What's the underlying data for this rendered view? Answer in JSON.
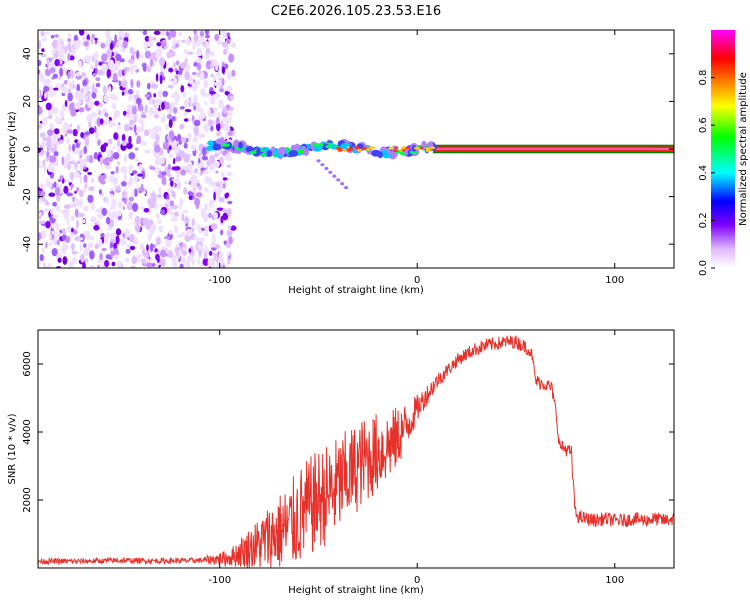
{
  "title": "C2E6.2026.105.23.53.E16",
  "chart_data": [
    {
      "type": "heatmap",
      "title": "C2E6.2026.105.23.53.E16",
      "xlabel": "Height of straight line (km)",
      "ylabel": "Frequency (Hz)",
      "xlim": [
        -192,
        130
      ],
      "ylim": [
        -50,
        50
      ],
      "x_ticks": [
        -100,
        0,
        100
      ],
      "x_tick_labels": [
        "-100",
        "0",
        "100"
      ],
      "y_ticks": [
        -40,
        -20,
        0,
        20,
        40
      ],
      "y_tick_labels": [
        "-40",
        "-20",
        "0",
        "20",
        "40"
      ],
      "noise_region_x": [
        -192,
        -93
      ],
      "signal_band": {
        "x_start": -105,
        "x_end": 8,
        "center_hz": 0
      },
      "carrier_line": {
        "x_start": 8,
        "x_end": 130,
        "freq_hz": 0,
        "halfwidth_hz": 1.8
      },
      "colorbar": {
        "label": "Normalized spectral amplitude",
        "range": [
          0,
          1
        ],
        "ticks": [
          0,
          0.2,
          0.4,
          0.6,
          0.8
        ],
        "tick_labels": [
          "0.0",
          "0.2",
          "0.4",
          "0.6",
          "0.8"
        ],
        "colormap": [
          "#ffffff",
          "#e0b8ff",
          "#8000ff",
          "#0000ff",
          "#00ffff",
          "#00ff00",
          "#ffff00",
          "#ff8000",
          "#ff0000",
          "#ff00ff"
        ]
      }
    },
    {
      "type": "line",
      "xlabel": "Height of straight line (km)",
      "ylabel": "SNR (10 * v/v)",
      "xlim": [
        -192,
        130
      ],
      "ylim": [
        0,
        7000
      ],
      "x_ticks": [
        -100,
        0,
        100
      ],
      "x_tick_labels": [
        "-100",
        "0",
        "100"
      ],
      "y_ticks": [
        2000,
        4000,
        6000
      ],
      "y_tick_labels": [
        "2000",
        "4000",
        "6000"
      ],
      "series": [
        {
          "name": "SNR",
          "color": "#e8302a",
          "x": [
            -192,
            -170,
            -150,
            -130,
            -110,
            -95,
            -88,
            -80,
            -72,
            -65,
            -58,
            -50,
            -42,
            -35,
            -28,
            -20,
            -12,
            -5,
            0,
            5,
            10,
            15,
            20,
            25,
            30,
            35,
            40,
            45,
            50,
            55,
            58,
            60,
            65,
            68,
            70,
            72,
            75,
            78,
            80,
            82,
            85,
            90,
            95,
            100,
            105,
            110,
            115,
            120,
            125,
            130
          ],
          "y": [
            200,
            200,
            220,
            210,
            220,
            300,
            500,
            700,
            1000,
            1200,
            1600,
            2000,
            2300,
            2700,
            3100,
            3400,
            3700,
            4200,
            4700,
            5100,
            5500,
            5800,
            6100,
            6300,
            6450,
            6550,
            6600,
            6650,
            6650,
            6500,
            6300,
            5500,
            5400,
            5300,
            4700,
            3600,
            3500,
            3400,
            1600,
            1500,
            1450,
            1400,
            1450,
            1400,
            1400,
            1450,
            1400,
            1450,
            1400,
            1450
          ],
          "noise_amplitude": [
            80,
            80,
            80,
            80,
            80,
            250,
            500,
            800,
            1100,
            1300,
            1500,
            1500,
            1500,
            1400,
            1300,
            1200,
            1000,
            700,
            400,
            300,
            250,
            200,
            200,
            200,
            200,
            200,
            200,
            200,
            200,
            200,
            150,
            200,
            200,
            200,
            150,
            200,
            200,
            200,
            200,
            200,
            200,
            200,
            200,
            200,
            200,
            200,
            200,
            200,
            200,
            200
          ]
        }
      ]
    }
  ]
}
